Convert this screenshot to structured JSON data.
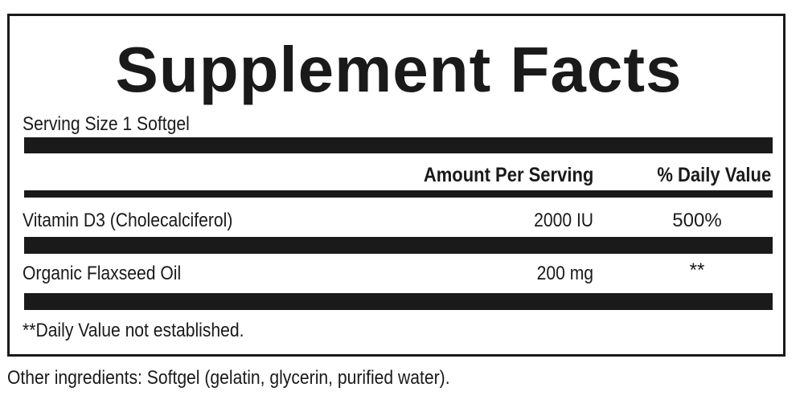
{
  "title": "Supplement Facts",
  "serving_size": "Serving Size 1 Softgel",
  "headers": {
    "amount": "Amount Per Serving",
    "daily_value": "% Daily Value"
  },
  "rows": [
    {
      "name": "Vitamin D3 (Cholecalciferol)",
      "amount": "2000 IU",
      "daily_value": "500%"
    },
    {
      "name": "Organic Flaxseed Oil",
      "amount": "200 mg",
      "daily_value": "**"
    }
  ],
  "footnote": "**Daily Value not established.",
  "other_ingredients": "Other ingredients: Softgel (gelatin, glycerin, purified water)."
}
